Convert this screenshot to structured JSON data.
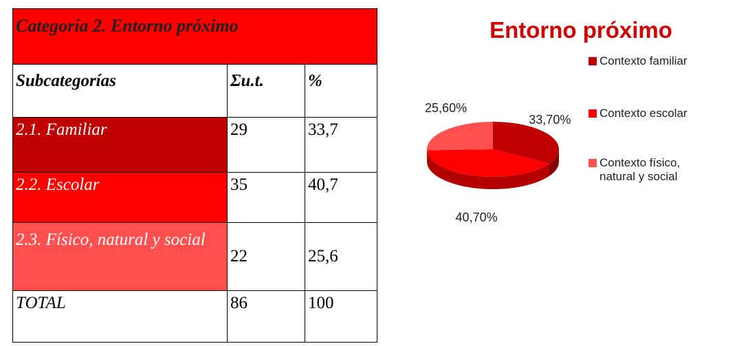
{
  "table": {
    "title": "Categoría 2. Entorno próximo",
    "header": [
      "Subcategorías",
      "Σu.t.",
      "%"
    ],
    "rows": [
      [
        "2.1. Familiar",
        "29",
        "33,7"
      ],
      [
        "2.2. Escolar",
        "35",
        "40,7"
      ],
      [
        "2.3. Físico, natural y social",
        "22",
        "25,6"
      ],
      [
        "TOTAL",
        "86",
        "100"
      ]
    ]
  },
  "chart_data": {
    "type": "pie",
    "title": "Entorno próximo",
    "categories": [
      "Contexto familiar",
      "Contexto escolar",
      "Contexto físico, natural y social"
    ],
    "values": [
      33.7,
      40.7,
      25.6
    ],
    "value_labels": [
      "33,70%",
      "40,70%",
      "25,60%"
    ],
    "colors": [
      "#c00000",
      "#ff0000",
      "#ff5050"
    ]
  }
}
